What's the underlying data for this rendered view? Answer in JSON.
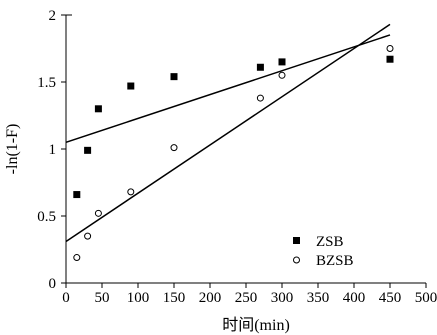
{
  "chart_data": {
    "type": "scatter",
    "xlabel": "时间(min)",
    "ylabel": "-ln(1-F)",
    "xlim": [
      0,
      500
    ],
    "ylim": [
      0,
      2
    ],
    "xticks": [
      0,
      50,
      100,
      150,
      200,
      250,
      300,
      350,
      400,
      450,
      500
    ],
    "yticks": [
      0,
      0.5,
      1,
      1.5,
      2
    ],
    "xtick_labels": [
      "0",
      "50",
      "100",
      "150",
      "200",
      "250",
      "300",
      "350",
      "400",
      "450",
      "500"
    ],
    "ytick_labels": [
      "0",
      "0.5",
      "1",
      "1.5",
      "2"
    ],
    "grid": false,
    "legend_position": "bottom-right",
    "series": [
      {
        "name": "ZSB",
        "marker": "filled-square",
        "color": "#000000",
        "x": [
          15,
          30,
          45,
          90,
          150,
          270,
          300,
          450
        ],
        "y": [
          0.66,
          0.99,
          1.3,
          1.47,
          1.54,
          1.61,
          1.65,
          1.67
        ],
        "fit": {
          "slope": 0.00178,
          "intercept": 1.05
        }
      },
      {
        "name": "BZSB",
        "marker": "open-circle",
        "color": "#000000",
        "x": [
          15,
          30,
          45,
          90,
          150,
          270,
          300,
          450
        ],
        "y": [
          0.19,
          0.35,
          0.52,
          0.68,
          1.01,
          1.38,
          1.55,
          1.75
        ],
        "fit": {
          "slope": 0.0036,
          "intercept": 0.31
        }
      }
    ]
  }
}
